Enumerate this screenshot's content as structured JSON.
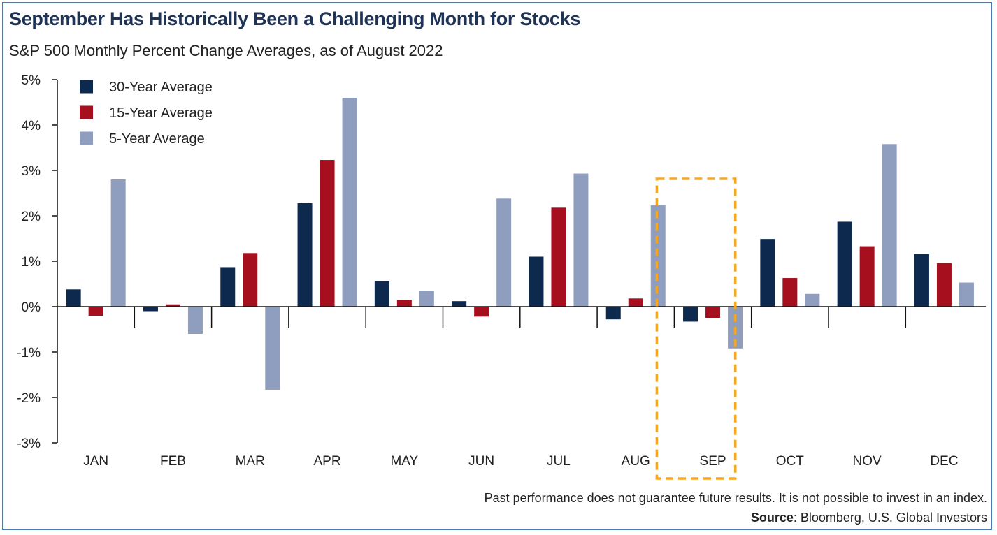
{
  "title": "September Has Historically Been a Challenging Month for Stocks",
  "subtitle": "S&P 500 Monthly Percent Change Averages, as of August 2022",
  "footnote": "Past performance does not guarantee future results. It is not possible to invest in an index.",
  "source": {
    "label": "Source",
    "text": ": Bloomberg, U.S. Global Investors"
  },
  "colors": {
    "series_30": "#0d2a4e",
    "series_15": "#a50f1e",
    "series_5": "#8f9dbf",
    "highlight": "#f5a623",
    "axis": "#111111",
    "border": "#4a78b8"
  },
  "chart_data": {
    "type": "bar",
    "title": "September Has Historically Been a Challenging Month for Stocks",
    "xlabel": "",
    "ylabel": "",
    "ylim": [
      -3,
      5
    ],
    "yticks": [
      5,
      4,
      3,
      2,
      1,
      0,
      -1,
      -2,
      -3
    ],
    "ytick_labels": [
      "5%",
      "4%",
      "3%",
      "2%",
      "1%",
      "0%",
      "-1%",
      "-2%",
      "-3%"
    ],
    "legend_position": "top-left",
    "highlight_category": "SEP",
    "categories": [
      "JAN",
      "FEB",
      "MAR",
      "APR",
      "MAY",
      "JUN",
      "JUL",
      "AUG",
      "SEP",
      "OCT",
      "NOV",
      "DEC"
    ],
    "series": [
      {
        "name": "30-Year Average",
        "values": [
          0.38,
          -0.1,
          0.87,
          2.28,
          0.56,
          0.12,
          1.1,
          -0.28,
          -0.33,
          1.49,
          1.87,
          1.16
        ]
      },
      {
        "name": "15-Year Average",
        "values": [
          -0.2,
          0.05,
          1.18,
          3.23,
          0.15,
          -0.22,
          2.18,
          0.18,
          -0.25,
          0.63,
          1.33,
          0.96
        ]
      },
      {
        "name": "5-Year Average",
        "values": [
          2.8,
          -0.6,
          -1.83,
          4.6,
          0.35,
          2.38,
          2.93,
          2.23,
          -0.92,
          0.28,
          3.58,
          0.53
        ]
      }
    ]
  }
}
